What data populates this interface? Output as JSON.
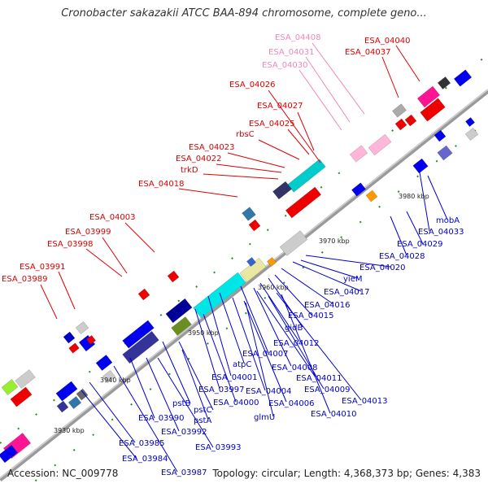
{
  "title": "Cronobacter sakazakii ATCC BAA-894 chromosome, complete geno...",
  "accession": "Accession: NC_009778",
  "topology": "Topology: circular; Length: 4,368,373 bp; Genes: 4,383",
  "colors": {
    "forward_label": "#dd0000",
    "reverse_label": "#0000cc",
    "pseudo_label": "#ee88bb",
    "backbone": "#888888"
  },
  "kbp_ticks": [
    "3930 kbp",
    "3940 kbp",
    "3950 kbp",
    "3960 kbp",
    "3970 kbp",
    "3980 kbp"
  ],
  "labels": [
    {
      "text": "ESA_04040",
      "tone": "fwd"
    },
    {
      "text": "ESA_04037",
      "tone": "fwd"
    },
    {
      "text": "ESA_04408",
      "tone": "pink"
    },
    {
      "text": "ESA_04031",
      "tone": "pink"
    },
    {
      "text": "ESA_04030",
      "tone": "pink"
    },
    {
      "text": "ESA_04026",
      "tone": "fwd"
    },
    {
      "text": "ESA_04027",
      "tone": "fwd"
    },
    {
      "text": "ESA_04025",
      "tone": "fwd"
    },
    {
      "text": "rbsC",
      "tone": "fwd"
    },
    {
      "text": "ESA_04023",
      "tone": "fwd"
    },
    {
      "text": "ESA_04022",
      "tone": "fwd"
    },
    {
      "text": "trkD",
      "tone": "fwd"
    },
    {
      "text": "ESA_04018",
      "tone": "fwd"
    },
    {
      "text": "ESA_04003",
      "tone": "fwd"
    },
    {
      "text": "ESA_03999",
      "tone": "fwd"
    },
    {
      "text": "ESA_03998",
      "tone": "fwd"
    },
    {
      "text": "ESA_03991",
      "tone": "fwd"
    },
    {
      "text": "ESA_03989",
      "tone": "fwd"
    },
    {
      "text": "mobA",
      "tone": "rev"
    },
    {
      "text": "ESA_04033",
      "tone": "rev"
    },
    {
      "text": "ESA_04029",
      "tone": "rev"
    },
    {
      "text": "ESA_04028",
      "tone": "rev"
    },
    {
      "text": "ESA_04020",
      "tone": "rev"
    },
    {
      "text": "yieM",
      "tone": "rev"
    },
    {
      "text": "ESA_04017",
      "tone": "rev"
    },
    {
      "text": "ESA_04016",
      "tone": "rev"
    },
    {
      "text": "ESA_04015",
      "tone": "rev"
    },
    {
      "text": "gidB",
      "tone": "rev"
    },
    {
      "text": "ESA_04012",
      "tone": "rev"
    },
    {
      "text": "ESA_04007",
      "tone": "rev"
    },
    {
      "text": "ESA_04008",
      "tone": "rev"
    },
    {
      "text": "ESA_04011",
      "tone": "rev"
    },
    {
      "text": "atpC",
      "tone": "rev"
    },
    {
      "text": "ESA_04001",
      "tone": "rev"
    },
    {
      "text": "ESA_04009",
      "tone": "rev"
    },
    {
      "text": "ESA_04004",
      "tone": "rev"
    },
    {
      "text": "ESA_04013",
      "tone": "rev"
    },
    {
      "text": "ESA_03997",
      "tone": "rev"
    },
    {
      "text": "ESA_04000",
      "tone": "rev"
    },
    {
      "text": "ESA_04006",
      "tone": "rev"
    },
    {
      "text": "pstB",
      "tone": "rev"
    },
    {
      "text": "ESA_04010",
      "tone": "rev"
    },
    {
      "text": "pstC",
      "tone": "rev"
    },
    {
      "text": "glmU",
      "tone": "rev"
    },
    {
      "text": "ESA_03990",
      "tone": "rev"
    },
    {
      "text": "pstA",
      "tone": "rev"
    },
    {
      "text": "ESA_03992",
      "tone": "rev"
    },
    {
      "text": "ESA_03985",
      "tone": "rev"
    },
    {
      "text": "ESA_03993",
      "tone": "rev"
    },
    {
      "text": "ESA_03984",
      "tone": "rev"
    },
    {
      "text": "ESA_03987",
      "tone": "rev"
    }
  ]
}
